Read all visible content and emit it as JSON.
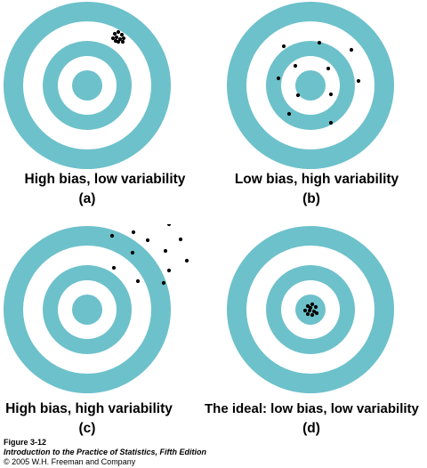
{
  "colors": {
    "ring": "#6dc1cb",
    "gap": "#ffffff",
    "dot": "#000000"
  },
  "panels": [
    {
      "id": "a",
      "caption": "High bias, low variability",
      "letter": "(a)",
      "dots": "tight cluster near top edge of target"
    },
    {
      "id": "b",
      "caption": "Low bias, high variability",
      "letter": "(b)",
      "dots": "scattered around the center"
    },
    {
      "id": "c",
      "caption": "High bias, high variability",
      "letter": "(c)",
      "dots": "scattered, offset to upper right"
    },
    {
      "id": "d",
      "caption": "The ideal: low bias, low variability",
      "letter": "(d)",
      "dots": "tight cluster at the bullseye"
    }
  ],
  "credits": {
    "figure": "Figure 3-12",
    "book": "Introduction to the Practice of Statistics, Fifth Edition",
    "copyright": "© 2005 W.H. Freeman and Company"
  }
}
